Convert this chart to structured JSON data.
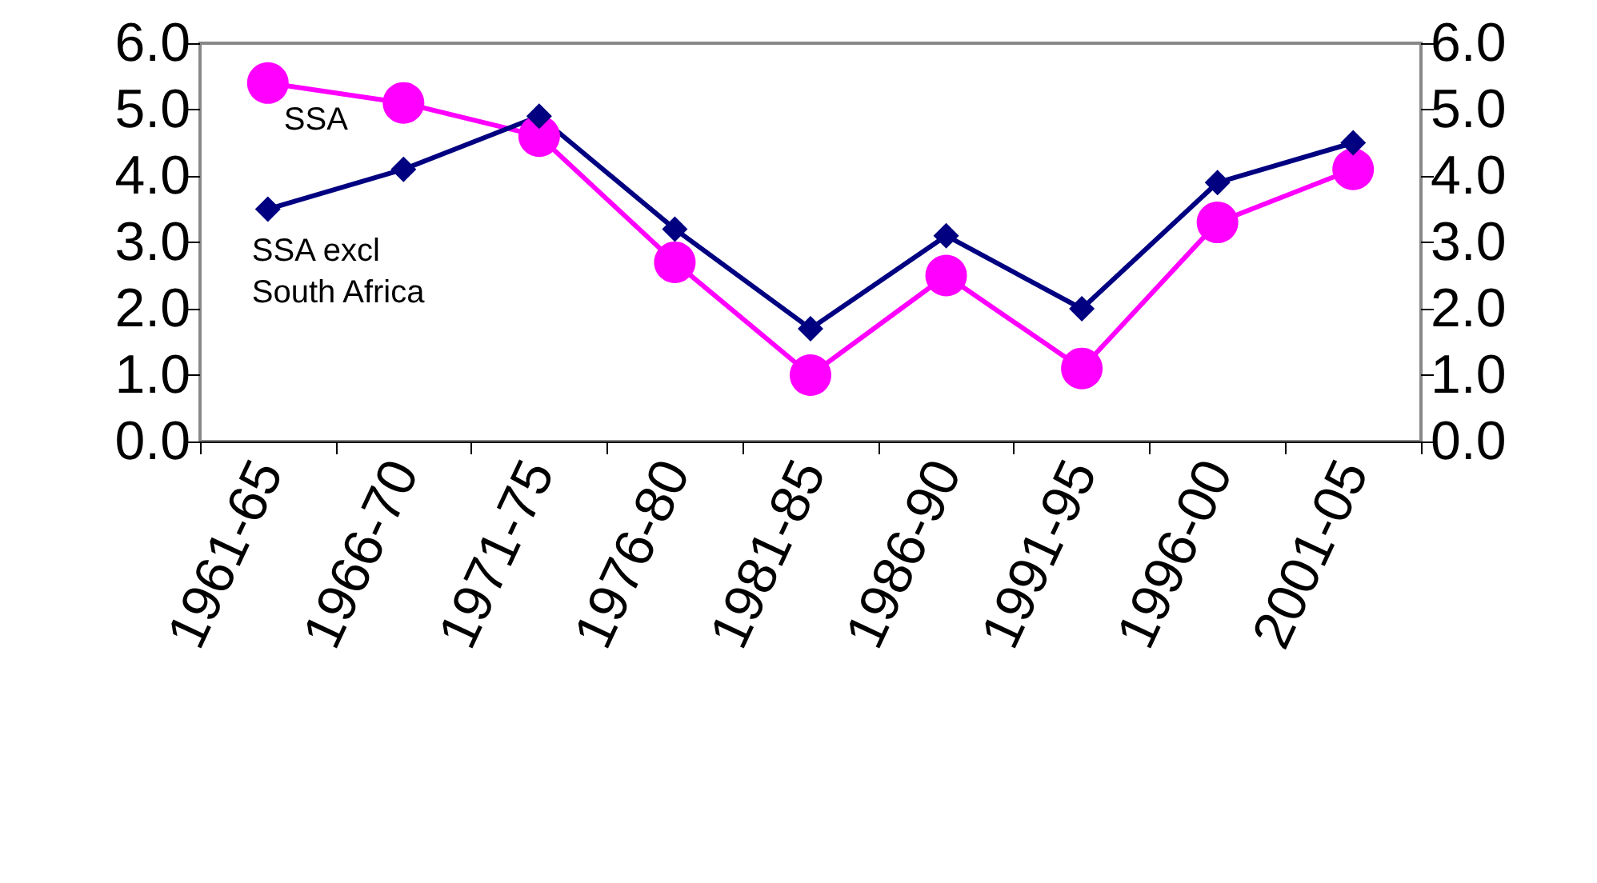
{
  "chart_data": {
    "type": "line",
    "categories": [
      "1961-65",
      "1966-70",
      "1971-75",
      "1976-80",
      "1981-85",
      "1986-90",
      "1991-95",
      "1996-00",
      "2001-05"
    ],
    "series": [
      {
        "name": "SSA",
        "color": "#ff00ff",
        "marker": "circle",
        "values": [
          5.4,
          5.1,
          4.6,
          2.7,
          1.0,
          2.5,
          1.1,
          3.3,
          4.1
        ]
      },
      {
        "name": "SSA excl South Africa",
        "color": "#000080",
        "marker": "diamond",
        "values": [
          3.5,
          4.1,
          4.9,
          3.2,
          1.7,
          3.1,
          2.0,
          3.9,
          4.5
        ]
      }
    ],
    "ylim": [
      0,
      6
    ],
    "yticks": [
      {
        "value": 0,
        "label": "0.0"
      },
      {
        "value": 1,
        "label": "1.0"
      },
      {
        "value": 2,
        "label": "2.0"
      },
      {
        "value": 3,
        "label": "3.0"
      },
      {
        "value": 4,
        "label": "4.0"
      },
      {
        "value": 5,
        "label": "5.0"
      },
      {
        "value": 6,
        "label": "6.0"
      }
    ],
    "y2lim": [
      0,
      6
    ],
    "y2ticks": [
      {
        "value": 0,
        "label": "0.0"
      },
      {
        "value": 1,
        "label": "1.0"
      },
      {
        "value": 2,
        "label": "2.0"
      },
      {
        "value": 3,
        "label": "3.0"
      },
      {
        "value": 4,
        "label": "4.0"
      },
      {
        "value": 5,
        "label": "5.0"
      },
      {
        "value": 6,
        "label": "6.0"
      }
    ],
    "grid": false,
    "legend": false,
    "line_style": "solid"
  }
}
